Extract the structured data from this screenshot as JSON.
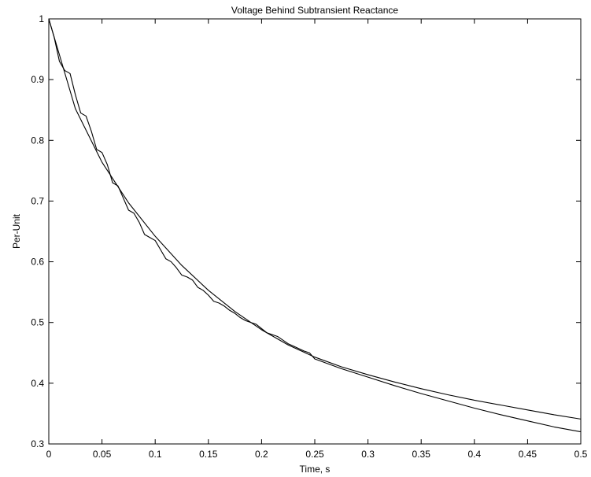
{
  "chart_data": {
    "type": "line",
    "title": "Voltage Behind Subtransient Reactance",
    "xlabel": "Time, s",
    "ylabel": "Per-Unit",
    "xlim": [
      0,
      0.5
    ],
    "ylim": [
      0.3,
      1
    ],
    "xticks": [
      0,
      0.05,
      0.1,
      0.15,
      0.2,
      0.25,
      0.3,
      0.35,
      0.4,
      0.45,
      0.5
    ],
    "xtick_labels": [
      "0",
      "0.05",
      "0.1",
      "0.15",
      "0.2",
      "0.25",
      "0.3",
      "0.35",
      "0.4",
      "0.45",
      "0.5"
    ],
    "yticks": [
      0.3,
      0.4,
      0.5,
      0.6,
      0.7,
      0.8,
      0.9,
      1
    ],
    "ytick_labels": [
      "0.3",
      "0.4",
      "0.5",
      "0.6",
      "0.7",
      "0.8",
      "0.9",
      "1"
    ],
    "grid": false,
    "line_color": "#000000",
    "series": [
      {
        "x": [
          0,
          0.025,
          0.05,
          0.075,
          0.1,
          0.125,
          0.15,
          0.175,
          0.2,
          0.225,
          0.25,
          0.275,
          0.3,
          0.325,
          0.35,
          0.375,
          0.4,
          0.425,
          0.45,
          0.475,
          0.5
        ],
        "y": [
          1.0,
          0.852,
          0.764,
          0.697,
          0.642,
          0.594,
          0.553,
          0.518,
          0.488,
          0.463,
          0.443,
          0.427,
          0.414,
          0.402,
          0.391,
          0.381,
          0.372,
          0.364,
          0.356,
          0.348,
          0.341
        ]
      },
      {
        "x": [
          0,
          0.005,
          0.01,
          0.015,
          0.02,
          0.025,
          0.03,
          0.035,
          0.04,
          0.045,
          0.05,
          0.055,
          0.06,
          0.065,
          0.07,
          0.075,
          0.08,
          0.085,
          0.09,
          0.095,
          0.1,
          0.105,
          0.11,
          0.115,
          0.12,
          0.125,
          0.13,
          0.135,
          0.14,
          0.145,
          0.15,
          0.155,
          0.16,
          0.165,
          0.17,
          0.175,
          0.18,
          0.185,
          0.19,
          0.195,
          0.2,
          0.205,
          0.21,
          0.215,
          0.22,
          0.225,
          0.23,
          0.235,
          0.24,
          0.245,
          0.25,
          0.275,
          0.3,
          0.325,
          0.35,
          0.375,
          0.4,
          0.425,
          0.45,
          0.475,
          0.5
        ],
        "y": [
          1.0,
          0.97,
          0.93,
          0.915,
          0.91,
          0.875,
          0.845,
          0.84,
          0.815,
          0.785,
          0.78,
          0.76,
          0.73,
          0.725,
          0.705,
          0.685,
          0.68,
          0.665,
          0.645,
          0.64,
          0.635,
          0.62,
          0.605,
          0.6,
          0.59,
          0.578,
          0.575,
          0.57,
          0.558,
          0.553,
          0.545,
          0.535,
          0.532,
          0.527,
          0.52,
          0.515,
          0.508,
          0.503,
          0.5,
          0.497,
          0.49,
          0.483,
          0.48,
          0.477,
          0.471,
          0.465,
          0.461,
          0.457,
          0.453,
          0.45,
          0.44,
          0.424,
          0.41,
          0.396,
          0.383,
          0.371,
          0.359,
          0.348,
          0.338,
          0.328,
          0.32
        ]
      }
    ]
  }
}
